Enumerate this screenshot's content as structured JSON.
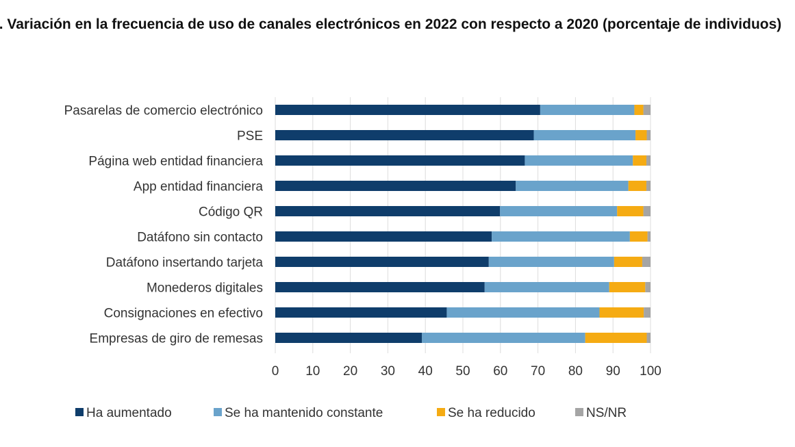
{
  "chart_data": {
    "type": "bar",
    "orientation": "horizontal",
    "stacked": true,
    "title": ". Variación en la frecuencia de uso de canales electrónicos en 2022 con respecto a 2020 (porcentaje de individuos)",
    "xlabel": "",
    "ylabel": "",
    "xlim": [
      0,
      100
    ],
    "x_ticks": [
      0,
      10,
      20,
      30,
      40,
      50,
      60,
      70,
      80,
      90,
      100
    ],
    "grid": true,
    "legend_position": "bottom",
    "categories": [
      "Pasarelas de comercio electrónico",
      "PSE",
      "Página web entidad financiera",
      "App entidad financiera",
      "Código QR",
      "Datáfono sin contacto",
      "Datáfono insertando tarjeta",
      "Monederos digitales",
      "Consignaciones en efectivo",
      "Empresas de giro de remesas"
    ],
    "series": [
      {
        "name": "Ha aumentado",
        "color": "#0f3d6b",
        "values": [
          70.6,
          68.9,
          66.5,
          64.1,
          59.9,
          57.7,
          56.9,
          55.8,
          45.7,
          39.1
        ]
      },
      {
        "name": "Se ha mantenido constante",
        "color": "#6aa3cb",
        "values": [
          25.1,
          27.1,
          28.8,
          30.0,
          31.2,
          36.8,
          33.4,
          33.2,
          40.7,
          43.5
        ]
      },
      {
        "name": "Se ha reducido",
        "color": "#f5ab13",
        "values": [
          2.4,
          3.0,
          3.6,
          4.8,
          7.0,
          4.7,
          7.5,
          9.6,
          11.8,
          16.4
        ]
      },
      {
        "name": "NS/NR",
        "color": "#a5a5a5",
        "values": [
          1.9,
          1.0,
          1.1,
          1.1,
          1.9,
          0.8,
          2.2,
          1.4,
          1.8,
          1.0
        ]
      }
    ]
  }
}
